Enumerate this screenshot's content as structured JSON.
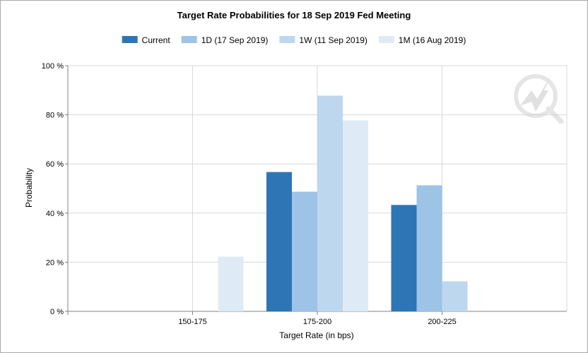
{
  "chart_data": {
    "type": "bar",
    "title": "Target Rate Probabilities for 18 Sep 2019 Fed Meeting",
    "xlabel": "Target Rate (in bps)",
    "ylabel": "Probability",
    "categories": [
      "150-175",
      "175-200",
      "200-225"
    ],
    "ylim": [
      0,
      100
    ],
    "yticks": [
      "0 %",
      "20 %",
      "40 %",
      "60 %",
      "80 %",
      "100 %"
    ],
    "ytick_values": [
      0,
      20,
      40,
      60,
      80,
      100
    ],
    "legend_position": "top",
    "grid": true,
    "series": [
      {
        "name": "Current",
        "color": "#2e75b6",
        "values": [
          0,
          56.7,
          43.3
        ]
      },
      {
        "name": "1D (17 Sep 2019)",
        "color": "#9dc3e6",
        "values": [
          0,
          48.7,
          51.3
        ]
      },
      {
        "name": "1W (11 Sep 2019)",
        "color": "#bdd7ee",
        "values": [
          0,
          87.8,
          12.2
        ]
      },
      {
        "name": "1M (16 Aug 2019)",
        "color": "#deebf7",
        "values": [
          22.3,
          77.7,
          0
        ]
      }
    ]
  },
  "watermark": {
    "name": "quikstrike-logo-icon"
  }
}
